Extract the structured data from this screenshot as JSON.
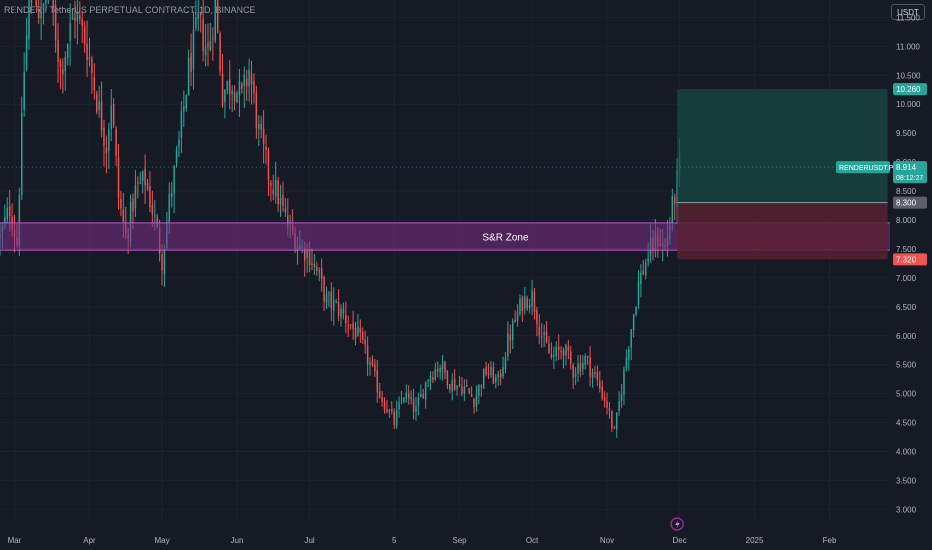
{
  "header": {
    "title": "RENDER / TetherUS PERPETUAL CONTRACT, 1D, BINANCE",
    "currency_label": "USDT"
  },
  "colors": {
    "background": "#161a25",
    "up": "#26a69a",
    "down": "#ef5350",
    "zone_fill": "#7b2f86",
    "zone_line": "#c552d6",
    "target_fill": "#174a44",
    "stop_fill": "#5a2232",
    "axis_text": "#b2b5be",
    "grid": "#1e222d"
  },
  "chart_data": {
    "type": "candlestick",
    "title": "RENDER / TetherUS PERPETUAL CONTRACT, 1D, BINANCE",
    "x_range": [
      "2024-02-24",
      "2025-02-26"
    ],
    "ylim": [
      2.8,
      11.8
    ],
    "y_ticks": [
      "3.000",
      "3.500",
      "4.000",
      "4.500",
      "5.000",
      "5.500",
      "6.000",
      "6.500",
      "7.000",
      "7.500",
      "8.000",
      "8.500",
      "9.000",
      "9.500",
      "10.000",
      "10.500",
      "11.000",
      "11.500"
    ],
    "x_ticks": [
      {
        "label": "Mar",
        "date": "2024-03-01"
      },
      {
        "label": "Apr",
        "date": "2024-04-01"
      },
      {
        "label": "May",
        "date": "2024-05-01"
      },
      {
        "label": "Jun",
        "date": "2024-06-01"
      },
      {
        "label": "Jul",
        "date": "2024-07-01"
      },
      {
        "label": "5",
        "date": "2024-08-05"
      },
      {
        "label": "Sep",
        "date": "2024-09-01"
      },
      {
        "label": "Oct",
        "date": "2024-10-01"
      },
      {
        "label": "Nov",
        "date": "2024-11-01"
      },
      {
        "label": "Dec",
        "date": "2024-12-01"
      },
      {
        "label": "2025",
        "date": "2025-01-01"
      },
      {
        "label": "Feb",
        "date": "2025-02-01"
      }
    ],
    "price_path": [
      [
        "2024-02-24",
        7.7
      ],
      [
        "2024-02-28",
        8.2
      ],
      [
        "2024-03-02",
        7.6
      ],
      [
        "2024-03-05",
        10.6
      ],
      [
        "2024-03-08",
        12.3
      ],
      [
        "2024-03-12",
        11.4
      ],
      [
        "2024-03-15",
        12.2
      ],
      [
        "2024-03-20",
        10.6
      ],
      [
        "2024-03-26",
        11.6
      ],
      [
        "2024-03-31",
        11.0
      ],
      [
        "2024-04-04",
        10.1
      ],
      [
        "2024-04-08",
        9.3
      ],
      [
        "2024-04-10",
        10.1
      ],
      [
        "2024-04-13",
        8.4
      ],
      [
        "2024-04-16",
        7.7
      ],
      [
        "2024-04-20",
        8.5
      ],
      [
        "2024-04-24",
        8.7
      ],
      [
        "2024-04-28",
        8.0
      ],
      [
        "2024-05-01",
        7.3
      ],
      [
        "2024-05-04",
        8.3
      ],
      [
        "2024-05-08",
        9.3
      ],
      [
        "2024-05-12",
        10.6
      ],
      [
        "2024-05-16",
        11.4
      ],
      [
        "2024-05-20",
        10.9
      ],
      [
        "2024-05-23",
        11.7
      ],
      [
        "2024-05-26",
        10.2
      ],
      [
        "2024-05-30",
        10.4
      ],
      [
        "2024-06-03",
        10.1
      ],
      [
        "2024-06-06",
        10.6
      ],
      [
        "2024-06-10",
        9.5
      ],
      [
        "2024-06-14",
        8.8
      ],
      [
        "2024-06-18",
        8.4
      ],
      [
        "2024-06-22",
        7.9
      ],
      [
        "2024-06-26",
        7.6
      ],
      [
        "2024-07-01",
        7.4
      ],
      [
        "2024-07-05",
        7.0
      ],
      [
        "2024-07-08",
        6.6
      ],
      [
        "2024-07-12",
        6.5
      ],
      [
        "2024-07-16",
        6.3
      ],
      [
        "2024-07-21",
        6.0
      ],
      [
        "2024-07-26",
        5.5
      ],
      [
        "2024-07-30",
        5.0
      ],
      [
        "2024-08-05",
        4.5
      ],
      [
        "2024-08-09",
        5.0
      ],
      [
        "2024-08-14",
        4.7
      ],
      [
        "2024-08-19",
        5.3
      ],
      [
        "2024-08-24",
        5.5
      ],
      [
        "2024-08-28",
        5.2
      ],
      [
        "2024-09-03",
        5.1
      ],
      [
        "2024-09-07",
        4.9
      ],
      [
        "2024-09-12",
        5.4
      ],
      [
        "2024-09-17",
        5.2
      ],
      [
        "2024-09-21",
        5.9
      ],
      [
        "2024-09-27",
        6.6
      ],
      [
        "2024-10-01",
        6.7
      ],
      [
        "2024-10-05",
        6.0
      ],
      [
        "2024-10-09",
        5.6
      ],
      [
        "2024-10-14",
        5.8
      ],
      [
        "2024-10-18",
        5.4
      ],
      [
        "2024-10-23",
        5.6
      ],
      [
        "2024-10-27",
        5.3
      ],
      [
        "2024-11-01",
        4.8
      ],
      [
        "2024-11-04",
        4.3
      ],
      [
        "2024-11-07",
        5.1
      ],
      [
        "2024-11-10",
        5.9
      ],
      [
        "2024-11-14",
        6.9
      ],
      [
        "2024-11-18",
        7.4
      ],
      [
        "2024-11-22",
        7.7
      ],
      [
        "2024-11-25",
        7.5
      ],
      [
        "2024-11-28",
        8.2
      ],
      [
        "2024-12-01",
        8.9
      ]
    ],
    "annotations": {
      "zone": {
        "label": "S&R Zone",
        "top": 7.95,
        "bottom": 7.48
      },
      "position": {
        "entry": 8.3,
        "target": 10.26,
        "stop": 7.32,
        "start": "2024-11-30",
        "end": "2025-02-25"
      },
      "price_labels": [
        {
          "text": "10.260",
          "value": 10.26,
          "color": "#26a69a"
        },
        {
          "text": "8.300",
          "value": 8.3,
          "color": "#5d606b"
        },
        {
          "text": "7.320",
          "value": 7.32,
          "color": "#ef5350"
        }
      ],
      "last_price": {
        "symbol": "RENDERUSDT.P",
        "price": "8.914",
        "value": 8.914,
        "countdown": "08:12:27",
        "color": "#26a69a"
      },
      "marker": {
        "date": "2024-11-30",
        "icon": "lightning-icon"
      }
    }
  }
}
